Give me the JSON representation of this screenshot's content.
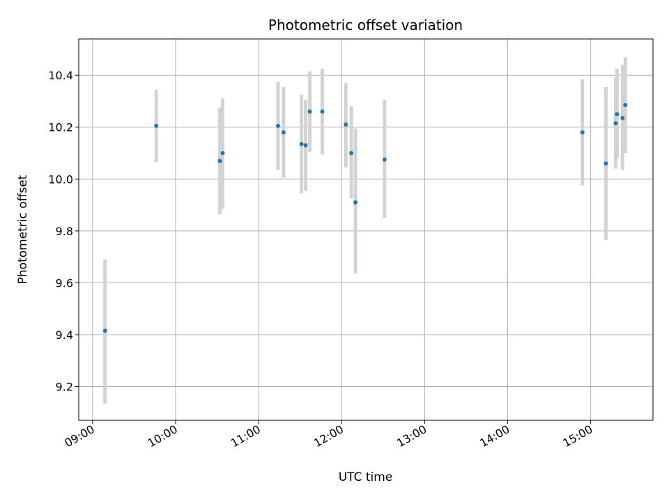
{
  "chart_data": {
    "type": "scatter",
    "title": "Photometric offset variation",
    "xlabel": "UTC time",
    "ylabel": "Photometric offset",
    "x_ticks": [
      "09:00",
      "10:00",
      "11:00",
      "12:00",
      "13:00",
      "14:00",
      "15:00"
    ],
    "x_tick_hours": [
      9,
      10,
      11,
      12,
      13,
      14,
      15
    ],
    "y_ticks": [
      "9.2",
      "9.4",
      "9.6",
      "9.8",
      "10.0",
      "10.2",
      "10.4"
    ],
    "y_tick_values": [
      9.2,
      9.4,
      9.6,
      9.8,
      10.0,
      10.2,
      10.4
    ],
    "xlim": [
      "08:50",
      "15:45"
    ],
    "ylim": [
      9.07,
      10.54
    ],
    "grid": true,
    "point_color": "#1f77b4",
    "errorbar_color": "#d3d3d3",
    "points": [
      {
        "time": "09:09",
        "value": 9.415,
        "low": 9.135,
        "high": 9.69
      },
      {
        "time": "09:46",
        "value": 10.205,
        "low": 10.065,
        "high": 10.345
      },
      {
        "time": "10:32",
        "value": 10.07,
        "low": 9.865,
        "high": 10.275
      },
      {
        "time": "10:34",
        "value": 10.1,
        "low": 9.885,
        "high": 10.31
      },
      {
        "time": "11:14",
        "value": 10.205,
        "low": 10.035,
        "high": 10.375
      },
      {
        "time": "11:18",
        "value": 10.18,
        "low": 10.005,
        "high": 10.355
      },
      {
        "time": "11:31",
        "value": 10.135,
        "low": 9.945,
        "high": 10.325
      },
      {
        "time": "11:34",
        "value": 10.13,
        "low": 9.955,
        "high": 10.305
      },
      {
        "time": "11:37",
        "value": 10.26,
        "low": 10.105,
        "high": 10.415
      },
      {
        "time": "11:46",
        "value": 10.26,
        "low": 10.095,
        "high": 10.425
      },
      {
        "time": "12:03",
        "value": 10.21,
        "low": 10.045,
        "high": 10.37
      },
      {
        "time": "12:07",
        "value": 10.1,
        "low": 9.925,
        "high": 10.28
      },
      {
        "time": "12:10",
        "value": 9.91,
        "low": 9.635,
        "high": 10.195
      },
      {
        "time": "12:31",
        "value": 10.075,
        "low": 9.85,
        "high": 10.305
      },
      {
        "time": "14:54",
        "value": 10.18,
        "low": 9.975,
        "high": 10.385
      },
      {
        "time": "15:11",
        "value": 10.06,
        "low": 9.765,
        "high": 10.355
      },
      {
        "time": "15:18",
        "value": 10.215,
        "low": 10.04,
        "high": 10.39
      },
      {
        "time": "15:19",
        "value": 10.25,
        "low": 10.08,
        "high": 10.425
      },
      {
        "time": "15:23",
        "value": 10.235,
        "low": 10.035,
        "high": 10.44
      },
      {
        "time": "15:25",
        "value": 10.285,
        "low": 10.1,
        "high": 10.47
      }
    ]
  }
}
